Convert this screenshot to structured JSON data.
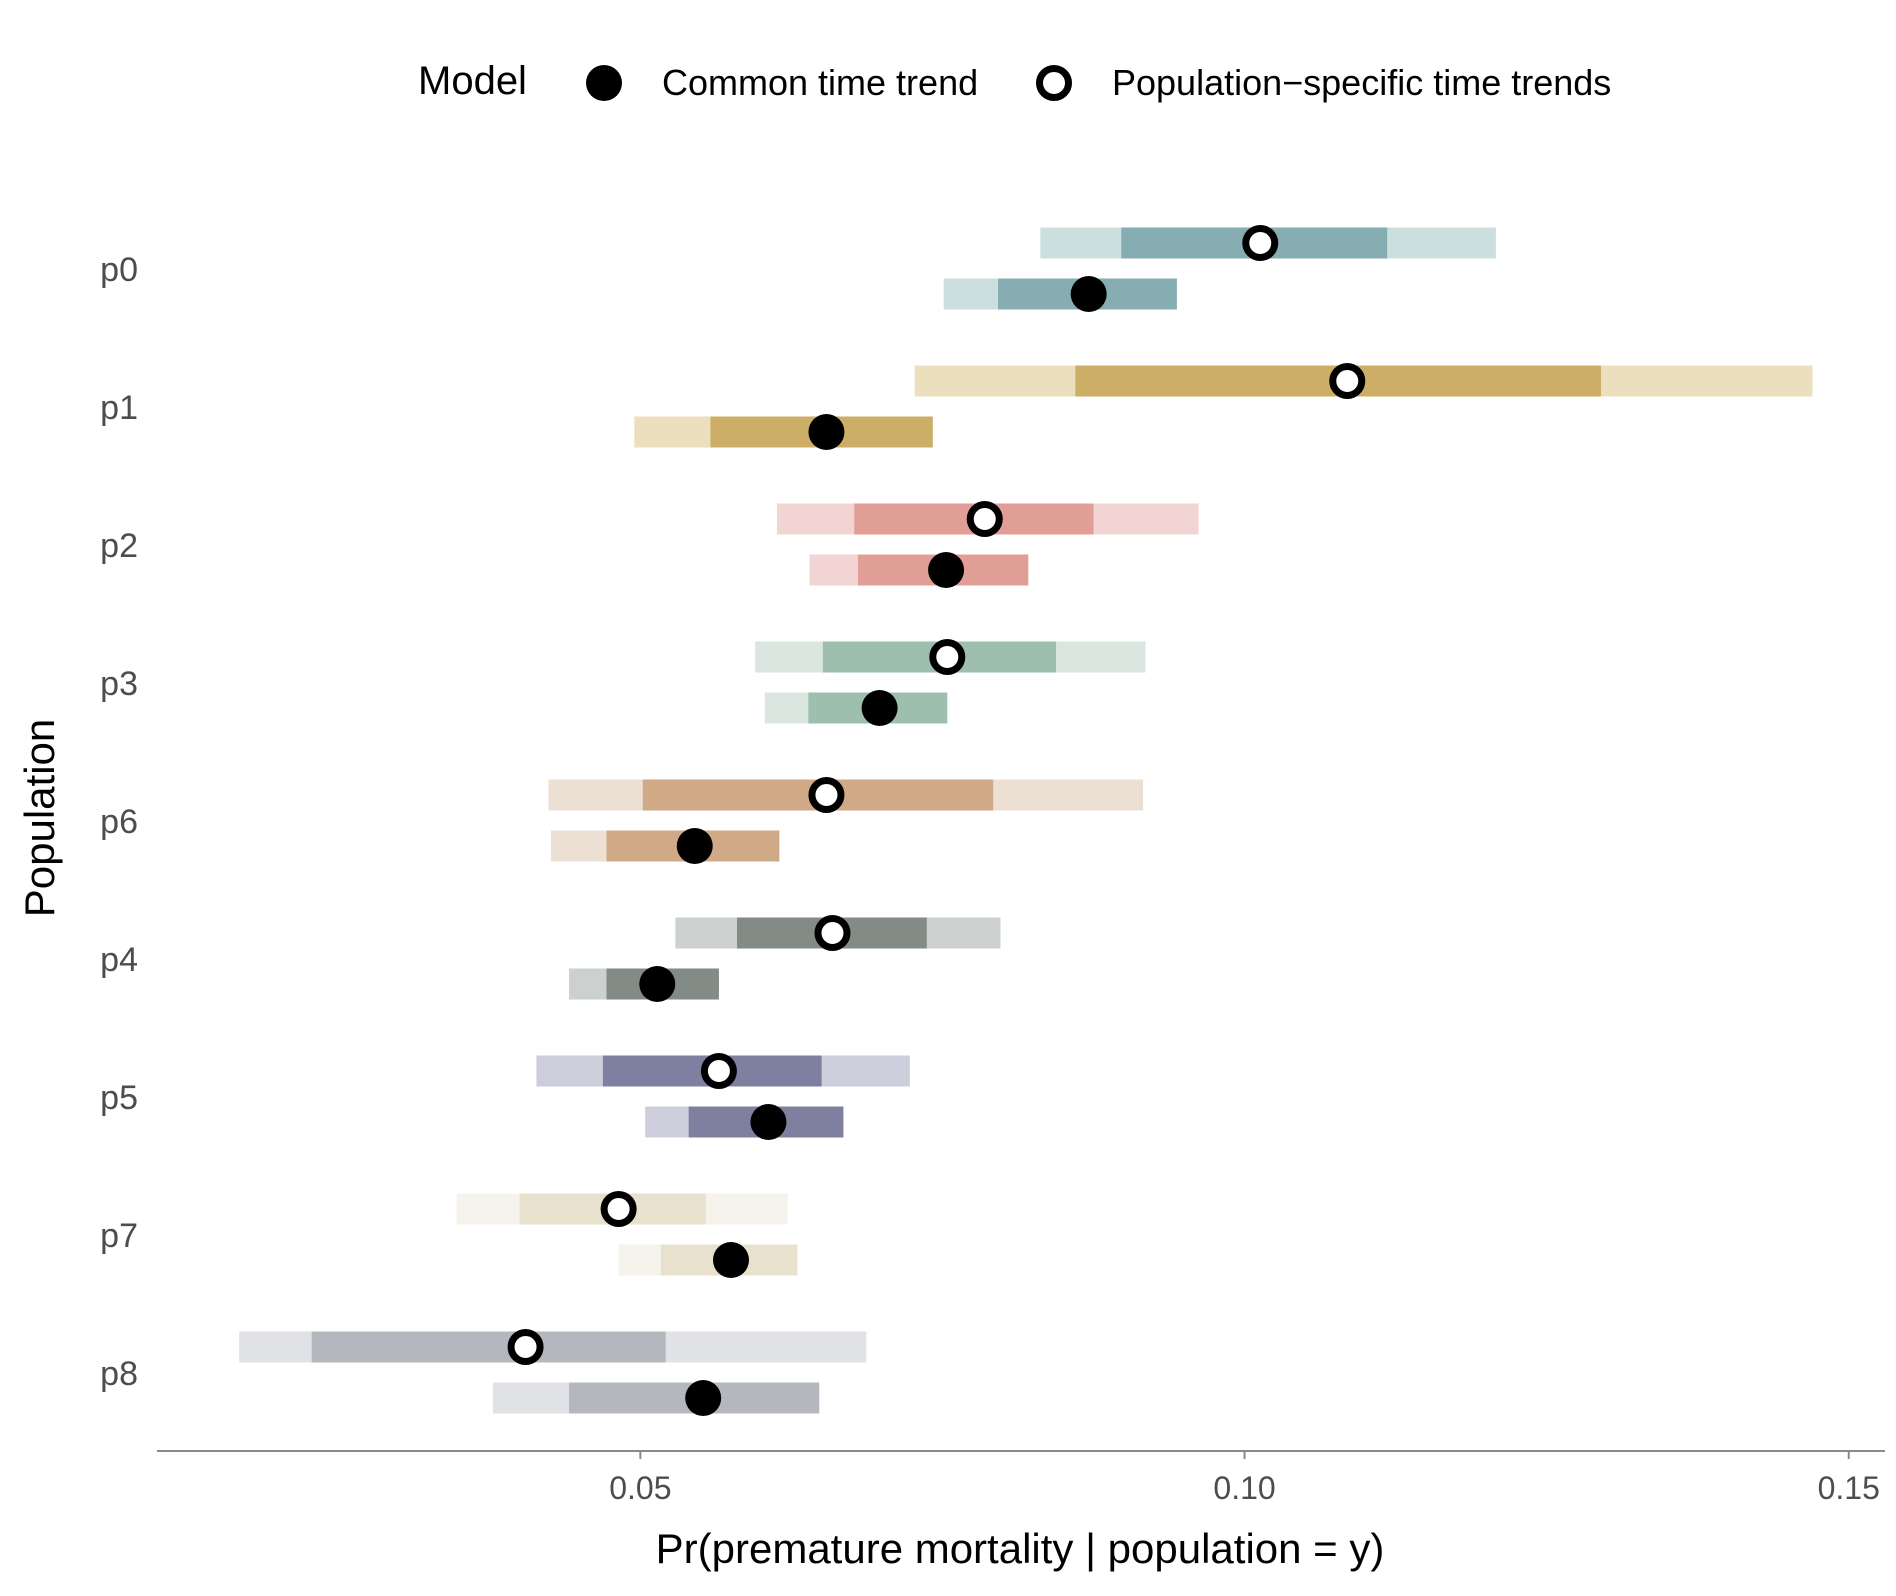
{
  "legend": {
    "title": "Model",
    "items": [
      {
        "label": "Common time trend",
        "marker": "filled"
      },
      {
        "label": "Population−specific time trends",
        "marker": "open"
      }
    ]
  },
  "chart_data": {
    "type": "interval-dot",
    "xlabel": "Pr(premature mortality | population = y)",
    "ylabel": "Population",
    "xlim": [
      0.01,
      0.153
    ],
    "xticks": [
      0.05,
      0.1,
      0.15
    ],
    "xtick_labels": [
      "0.05",
      "0.10",
      "0.15"
    ],
    "grid": false,
    "legend_position": "top",
    "series": [
      {
        "name": "Common time trend",
        "marker": "filled"
      },
      {
        "name": "Population−specific time trends",
        "marker": "open"
      }
    ],
    "categories": [
      "p0",
      "p1",
      "p2",
      "p3",
      "p6",
      "p4",
      "p5",
      "p7",
      "p8"
    ],
    "colors": {
      "p0": {
        "dark": "#86adb1",
        "light": "#ccdfdf"
      },
      "p1": {
        "dark": "#ccae66",
        "light": "#ebdfbd"
      },
      "p2": {
        "dark": "#e09e96",
        "light": "#f2d5d3"
      },
      "p3": {
        "dark": "#9ebfae",
        "light": "#dbe6e0"
      },
      "p6": {
        "dark": "#d0aa87",
        "light": "#ecdfd4"
      },
      "p4": {
        "dark": "#838b86",
        "light": "#ccd0ce"
      },
      "p5": {
        "dark": "#7f7f9f",
        "light": "#cdcddc"
      },
      "p7": {
        "dark": "#e7e1cd",
        "light": "#f5f3ec"
      },
      "p8": {
        "dark": "#b4b8be",
        "light": "#e1e2e5"
      }
    },
    "data": [
      {
        "population": "p0",
        "population_specific": {
          "point": 0.1013,
          "inner": [
            0.0898,
            0.1118
          ],
          "outer": [
            0.0831,
            0.1208
          ]
        },
        "common": {
          "point": 0.0871,
          "inner": [
            0.0796,
            0.0944
          ],
          "outer": [
            0.0751,
            0.0944
          ]
        }
      },
      {
        "population": "p1",
        "population_specific": {
          "point": 0.1085,
          "inner": [
            0.086,
            0.1295
          ],
          "outer": [
            0.0727,
            0.147
          ]
        },
        "common": {
          "point": 0.0654,
          "inner": [
            0.0558,
            0.0742
          ],
          "outer": [
            0.0495,
            0.0742
          ]
        }
      },
      {
        "population": "p2",
        "population_specific": {
          "point": 0.0785,
          "inner": [
            0.0677,
            0.0875
          ],
          "outer": [
            0.0613,
            0.0962
          ]
        },
        "common": {
          "point": 0.0753,
          "inner": [
            0.068,
            0.0821
          ],
          "outer": [
            0.064,
            0.0821
          ]
        }
      },
      {
        "population": "p3",
        "population_specific": {
          "point": 0.0754,
          "inner": [
            0.0651,
            0.0844
          ],
          "outer": [
            0.0595,
            0.0918
          ]
        },
        "common": {
          "point": 0.0698,
          "inner": [
            0.0639,
            0.0754
          ],
          "outer": [
            0.0603,
            0.0754
          ]
        }
      },
      {
        "population": "p6",
        "population_specific": {
          "point": 0.0654,
          "inner": [
            0.0502,
            0.0792
          ],
          "outer": [
            0.0424,
            0.0916
          ]
        },
        "common": {
          "point": 0.0545,
          "inner": [
            0.0472,
            0.0615
          ],
          "outer": [
            0.0426,
            0.0615
          ]
        }
      },
      {
        "population": "p4",
        "population_specific": {
          "point": 0.0659,
          "inner": [
            0.058,
            0.0737
          ],
          "outer": [
            0.0529,
            0.0798
          ]
        },
        "common": {
          "point": 0.0514,
          "inner": [
            0.0472,
            0.0565
          ],
          "outer": [
            0.0441,
            0.0565
          ]
        }
      },
      {
        "population": "p5",
        "population_specific": {
          "point": 0.0565,
          "inner": [
            0.0469,
            0.065
          ],
          "outer": [
            0.0414,
            0.0723
          ]
        },
        "common": {
          "point": 0.0606,
          "inner": [
            0.054,
            0.0668
          ],
          "outer": [
            0.0504,
            0.0668
          ]
        }
      },
      {
        "population": "p7",
        "population_specific": {
          "point": 0.0482,
          "inner": [
            0.04,
            0.0554
          ],
          "outer": [
            0.0348,
            0.0622
          ]
        },
        "common": {
          "point": 0.0575,
          "inner": [
            0.0517,
            0.063
          ],
          "outer": [
            0.0482,
            0.063
          ]
        }
      },
      {
        "population": "p8",
        "population_specific": {
          "point": 0.0405,
          "inner": [
            0.0228,
            0.0521
          ],
          "outer": [
            0.0168,
            0.0687
          ]
        },
        "common": {
          "point": 0.0552,
          "inner": [
            0.0441,
            0.0648
          ],
          "outer": [
            0.0378,
            0.0648
          ]
        }
      }
    ]
  }
}
